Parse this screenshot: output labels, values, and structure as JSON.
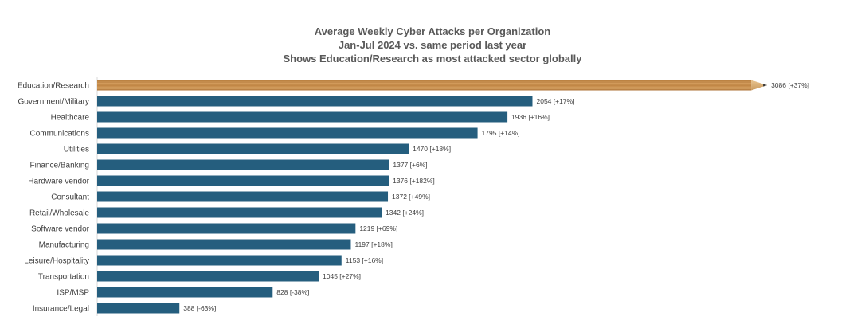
{
  "chart_data": {
    "type": "bar",
    "orientation": "horizontal",
    "title": [
      "Average Weekly Cyber Attacks per Organization",
      "Jan-Jul 2024 vs. same period last year",
      "Shows Education/Research as most attacked sector globally"
    ],
    "categories": [
      "Education/Research",
      "Government/Military",
      "Healthcare",
      "Communications",
      "Utilities",
      "Finance/Banking",
      "Hardware vendor",
      "Consultant",
      "Retail/Wholesale",
      "Software vendor",
      "Manufacturing",
      "Leisure/Hospitality",
      "Transportation",
      "ISP/MSP",
      "Insurance/Legal"
    ],
    "values": [
      3086,
      2054,
      1936,
      1795,
      1470,
      1377,
      1376,
      1372,
      1342,
      1219,
      1197,
      1153,
      1045,
      828,
      388
    ],
    "data_labels": [
      "3086 [+37%]",
      "2054 [+17%]",
      "1936 [+16%]",
      "1795 [+14%]",
      "1470 [+18%]",
      "1377 [+6%]",
      "1376 [+182%]",
      "1372 [+49%]",
      "1342 [+24%]",
      "1219 [+69%]",
      "1197 [+18%]",
      "1153 [+16%]",
      "1045 [+27%]",
      "828 [-38%]",
      "388 [-63%]"
    ],
    "xlim": [
      0,
      3300
    ],
    "highlight": {
      "category": "Education/Research",
      "style": "pencil"
    },
    "colors": {
      "bar": "#255e7e",
      "text": "#404040",
      "title": "#595959",
      "axis": "#d9d9d9"
    }
  }
}
